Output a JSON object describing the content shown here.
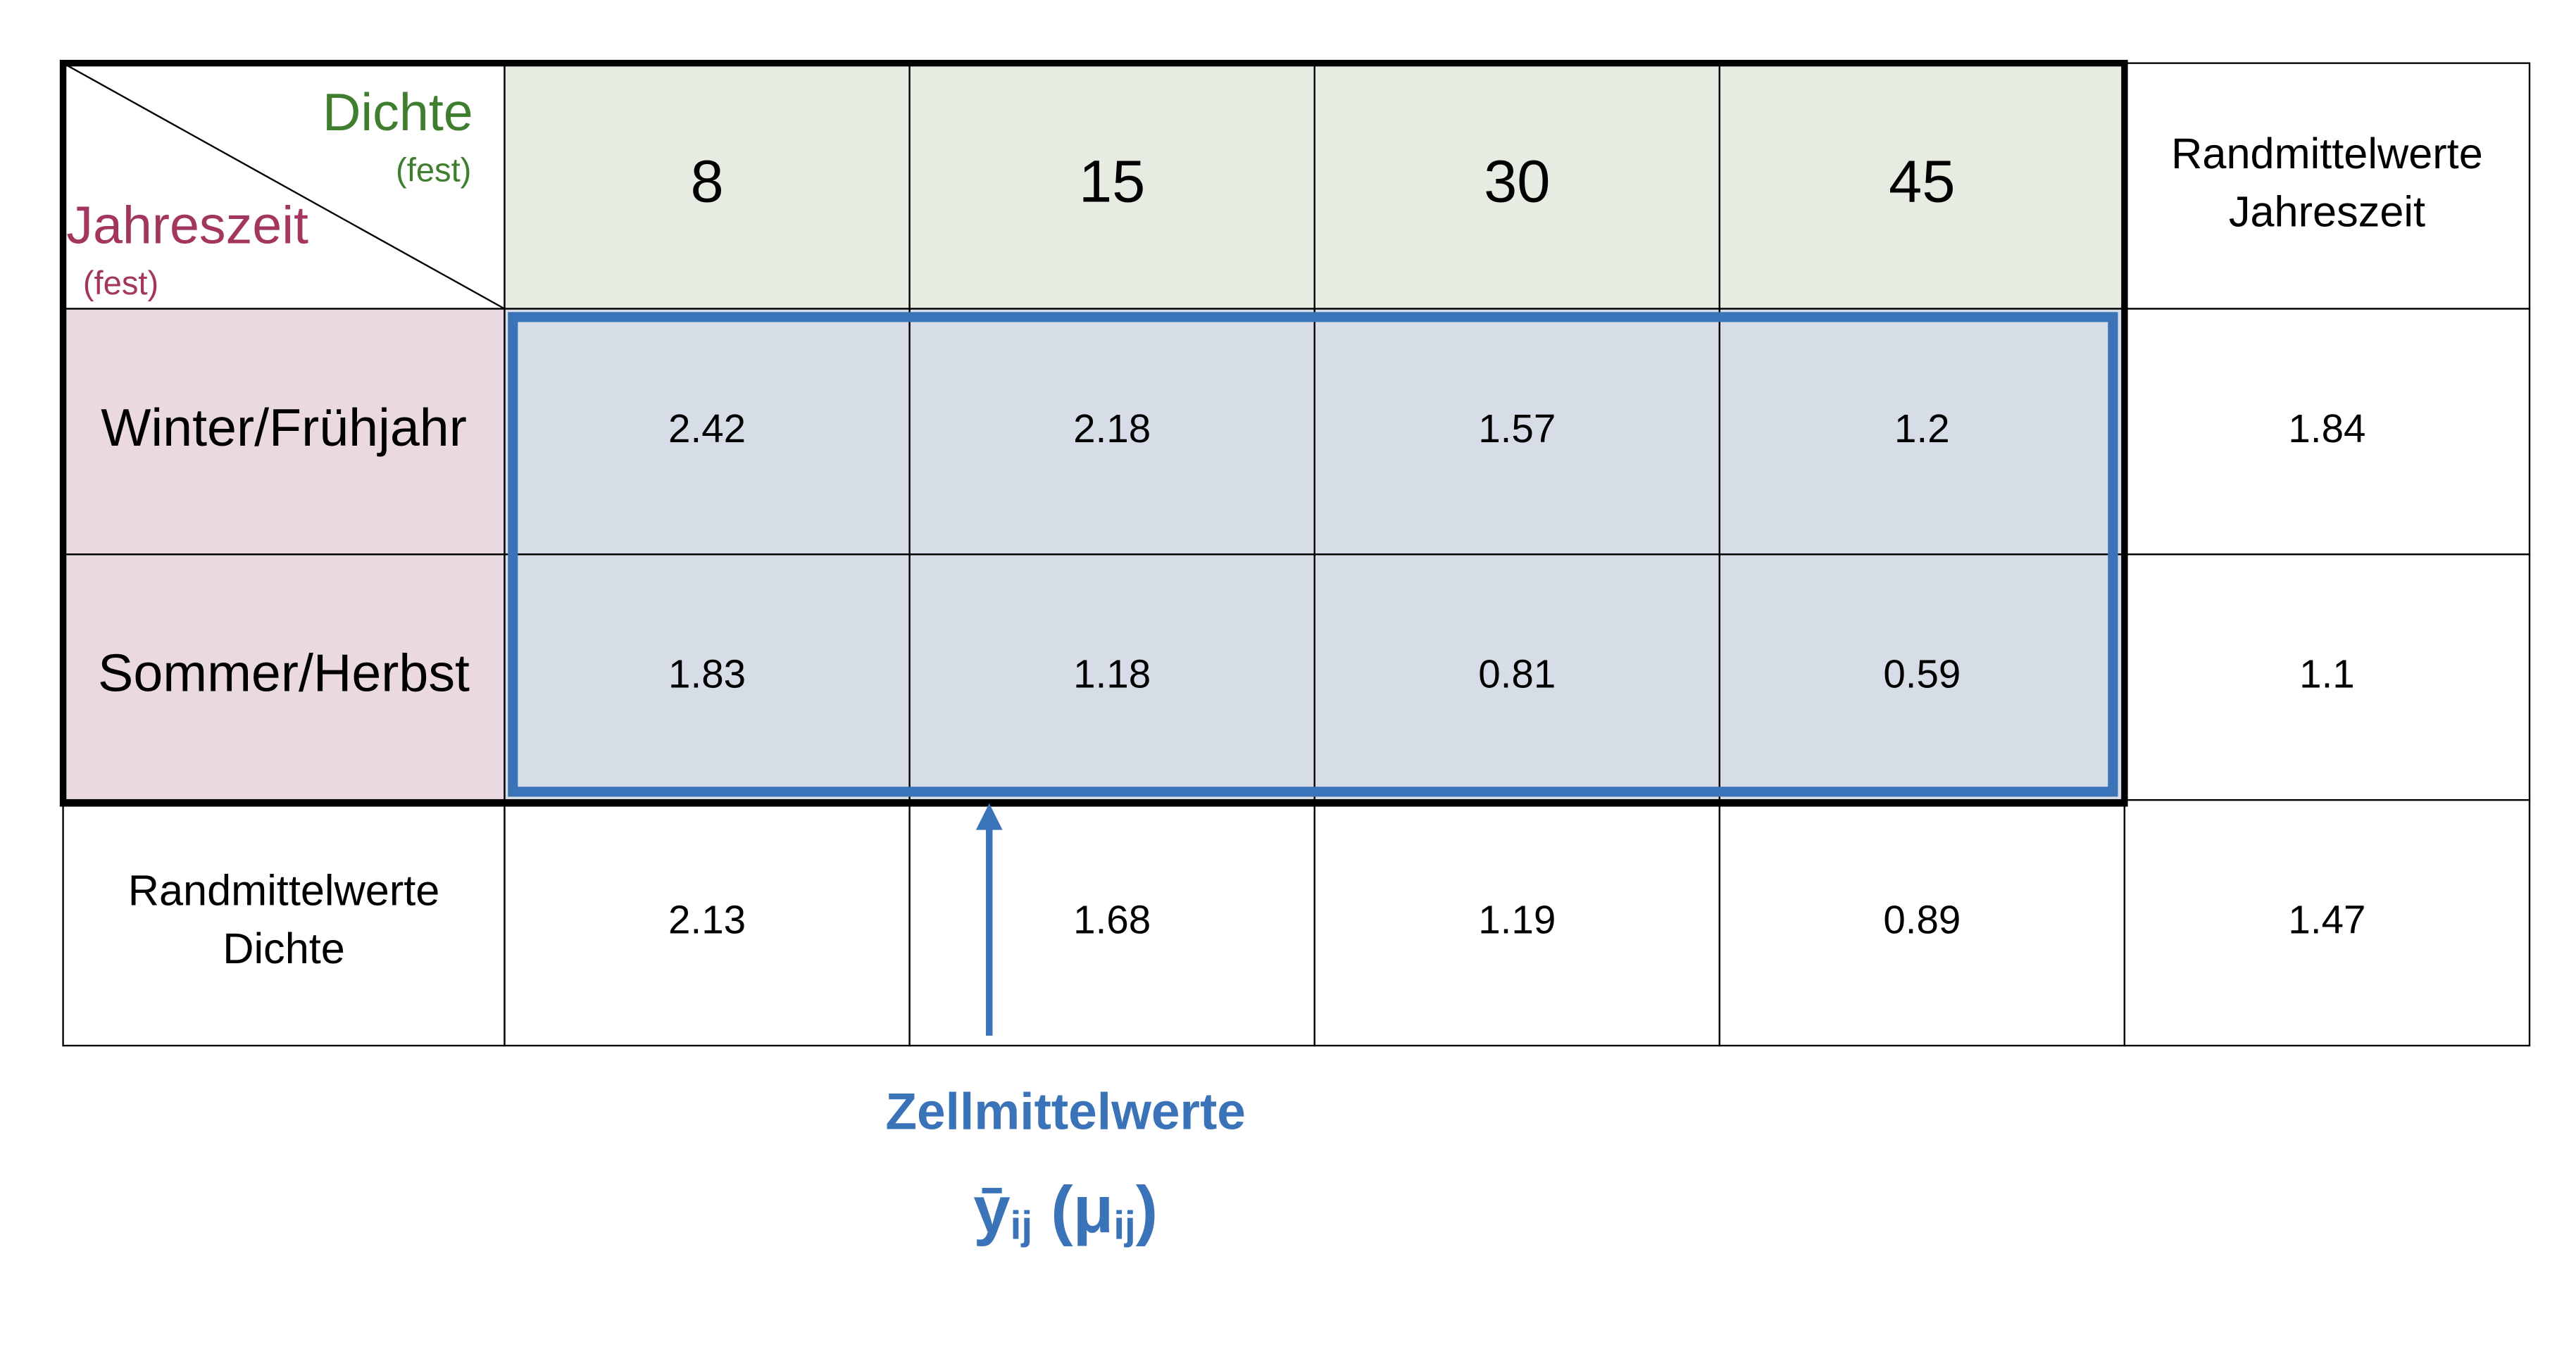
{
  "table": {
    "corner": {
      "column_header": "Dichte",
      "column_note": "(fest)",
      "row_header": "Jahreszeit",
      "row_note": "(fest)"
    },
    "columns": [
      8,
      15,
      30,
      45
    ],
    "margin_column_header": [
      "Randmittelwerte",
      "Jahreszeit"
    ],
    "rows": [
      {
        "label": "Winter/Frühjahr",
        "values": [
          2.42,
          2.18,
          1.57,
          1.2
        ],
        "margin": 1.84
      },
      {
        "label": "Sommer/Herbst",
        "values": [
          1.83,
          1.18,
          0.81,
          0.59
        ],
        "margin": 1.1
      }
    ],
    "margin_row": {
      "label": [
        "Randmittelwerte",
        "Dichte"
      ],
      "values": [
        2.13,
        1.68,
        1.19,
        0.89
      ],
      "margin": 1.47
    }
  },
  "annotation": {
    "label": "Zellmittelwerte",
    "formula": [
      "ȳ",
      "ij",
      " (μ",
      "ij",
      ")"
    ]
  }
}
